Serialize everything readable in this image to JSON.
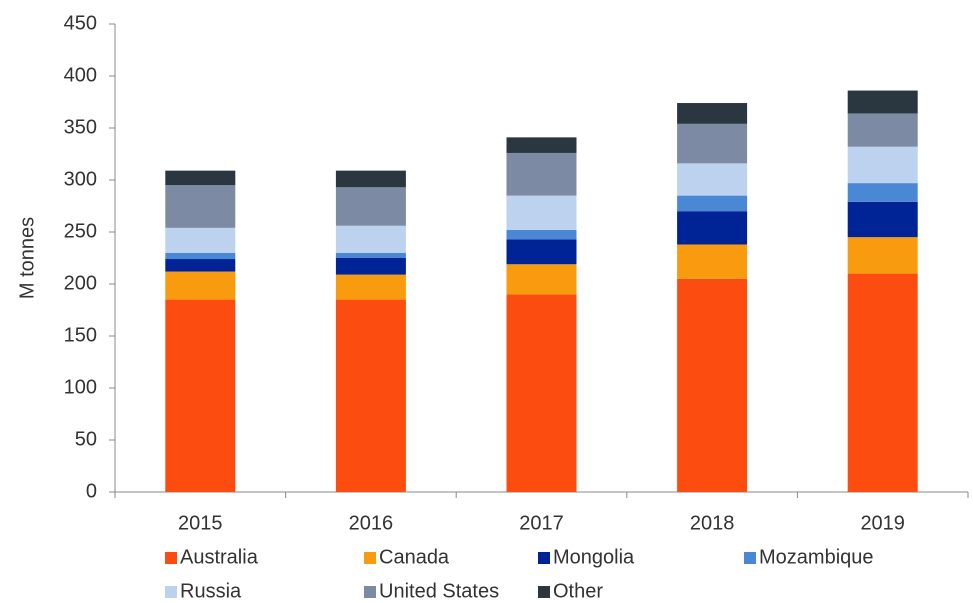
{
  "chart_data": {
    "type": "stacked-bar",
    "y_label": "M tonnes",
    "categories": [
      "2015",
      "2016",
      "2017",
      "2018",
      "2019"
    ],
    "series": [
      {
        "name": "Australia",
        "color": "#fc4c0f",
        "values": [
          185,
          185,
          190,
          205,
          210
        ]
      },
      {
        "name": "Canada",
        "color": "#f99b0e",
        "values": [
          27,
          24,
          29,
          33,
          35
        ]
      },
      {
        "name": "Mongolia",
        "color": "#002395",
        "values": [
          12,
          16,
          24,
          32,
          34
        ]
      },
      {
        "name": "Mozambique",
        "color": "#4a88d6",
        "values": [
          6,
          5,
          9,
          15,
          18
        ]
      },
      {
        "name": "Russia",
        "color": "#bcd2ee",
        "values": [
          24,
          26,
          33,
          31,
          35
        ]
      },
      {
        "name": "United States",
        "color": "#7d8aa3",
        "values": [
          41,
          37,
          41,
          38,
          32
        ]
      },
      {
        "name": "Other",
        "color": "#2b3740",
        "values": [
          14,
          16,
          15,
          20,
          22
        ]
      }
    ],
    "ylim": [
      0,
      450
    ],
    "yticks": [
      0,
      50,
      100,
      150,
      200,
      250,
      300,
      350,
      400,
      450
    ],
    "grid": false
  }
}
